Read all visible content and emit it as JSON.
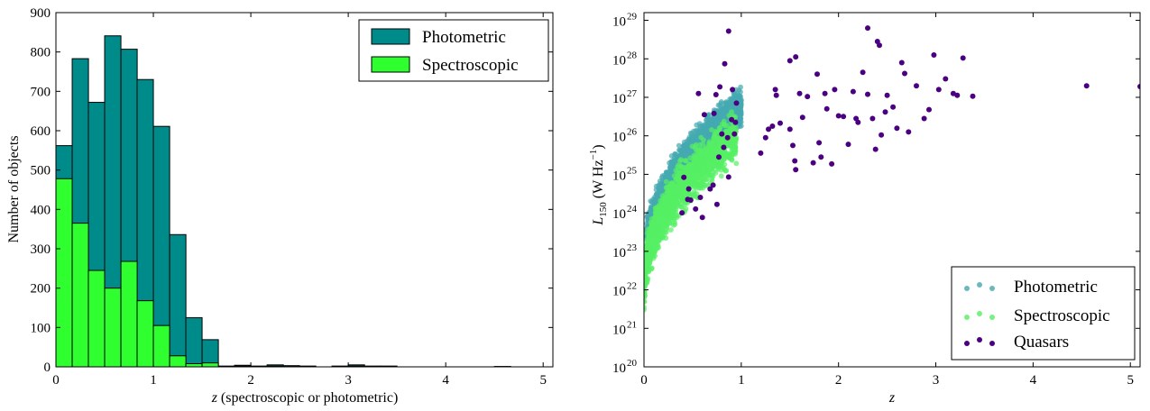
{
  "chart_data": [
    {
      "type": "bar",
      "stacked": false,
      "xlabel_italic": "z",
      "xlabel_rest": " (spectroscopic or photometric)",
      "ylabel": "Number of objects",
      "xlim": [
        0,
        5.1
      ],
      "ylim": [
        0,
        900
      ],
      "xticks": [
        "0",
        "1",
        "2",
        "3",
        "4",
        "5"
      ],
      "yticks": [
        "0",
        "100",
        "200",
        "300",
        "400",
        "500",
        "600",
        "700",
        "800",
        "900"
      ],
      "legend_position": "top-right",
      "grid": false,
      "bin_width": 0.167,
      "bin_starts": [
        0,
        0.167,
        0.333,
        0.5,
        0.667,
        0.833,
        1.0,
        1.167,
        1.333,
        1.5,
        1.667,
        1.833,
        2.0,
        2.167,
        2.333,
        2.5,
        2.667,
        2.833,
        3.0,
        3.167,
        3.333,
        3.5,
        3.667,
        3.833,
        4.0,
        4.167,
        4.333,
        4.5
      ],
      "series": [
        {
          "name": "Photometric",
          "color": "#008b8b",
          "values": [
            562,
            783,
            672,
            841,
            807,
            730,
            611,
            336,
            125,
            69,
            2,
            4,
            2,
            5,
            3,
            2,
            0,
            2,
            5,
            2,
            2,
            0,
            0,
            0,
            0,
            0,
            0,
            1
          ]
        },
        {
          "name": "Spectroscopic",
          "color": "#2fff2f",
          "values": [
            478,
            365,
            245,
            200,
            268,
            168,
            105,
            28,
            8,
            10,
            0,
            2,
            0,
            2,
            1,
            1,
            0,
            1,
            2,
            1,
            0,
            0,
            0,
            0,
            0,
            0,
            0,
            0
          ]
        }
      ]
    },
    {
      "type": "scatter",
      "xlabel": "z",
      "ylabel_main": "L",
      "ylabel_sub": "150",
      "ylabel_unit": " (W Hz",
      "ylabel_sup": "−1",
      "ylabel_close": ")",
      "xlim": [
        0,
        5.1
      ],
      "ylim_log10": [
        20,
        29.2
      ],
      "y_scale": "log",
      "xticks": [
        "0",
        "1",
        "2",
        "3",
        "4",
        "5"
      ],
      "ytick_base": "10",
      "ytick_exponents": [
        "20",
        "21",
        "22",
        "23",
        "24",
        "25",
        "26",
        "27",
        "28",
        "29"
      ],
      "legend_position": "bottom-right",
      "grid": false,
      "series": [
        {
          "name": "Photometric",
          "color": "#44aab0",
          "cloud": {
            "z_min": 0.02,
            "z_max": 1.0,
            "count": 2600
          }
        },
        {
          "name": "Spectroscopic",
          "color": "#55f064",
          "cloud": {
            "z_min": 0.0,
            "z_max": 0.95,
            "count": 1500
          }
        },
        {
          "name": "Quasars",
          "color": "#4b0082",
          "points": [
            [
              0.87,
              28.72
            ],
            [
              0.83,
              27.87
            ],
            [
              0.74,
              27.07
            ],
            [
              0.78,
              27.27
            ],
            [
              0.56,
              27.1
            ],
            [
              0.91,
              27.2
            ],
            [
              0.95,
              26.85
            ],
            [
              0.72,
              26.58
            ],
            [
              0.9,
              26.42
            ],
            [
              0.94,
              26.35
            ],
            [
              0.86,
              25.95
            ],
            [
              0.82,
              25.7
            ],
            [
              0.8,
              26.05
            ],
            [
              0.77,
              25.45
            ],
            [
              0.41,
              24.92
            ],
            [
              0.46,
              24.62
            ],
            [
              0.45,
              24.35
            ],
            [
              0.58,
              24.4
            ],
            [
              0.48,
              24.33
            ],
            [
              0.87,
              24.93
            ],
            [
              0.71,
              24.72
            ],
            [
              0.75,
              24.22
            ],
            [
              0.68,
              24.62
            ],
            [
              0.6,
              23.88
            ],
            [
              0.53,
              24.1
            ],
            [
              0.39,
              24.0
            ],
            [
              0.62,
              26.55
            ],
            [
              0.93,
              26.05
            ],
            [
              1.2,
              25.55
            ],
            [
              1.25,
              25.95
            ],
            [
              1.28,
              26.17
            ],
            [
              1.32,
              26.25
            ],
            [
              1.36,
              27.05
            ],
            [
              1.35,
              27.2
            ],
            [
              1.4,
              26.33
            ],
            [
              1.5,
              26.17
            ],
            [
              1.53,
              25.75
            ],
            [
              1.55,
              25.35
            ],
            [
              1.56,
              25.12
            ],
            [
              1.5,
              27.95
            ],
            [
              1.56,
              28.05
            ],
            [
              1.6,
              27.1
            ],
            [
              1.63,
              26.48
            ],
            [
              1.68,
              27.02
            ],
            [
              1.74,
              25.3
            ],
            [
              1.78,
              27.6
            ],
            [
              1.8,
              25.82
            ],
            [
              1.82,
              25.45
            ],
            [
              1.86,
              27.1
            ],
            [
              1.88,
              26.7
            ],
            [
              1.93,
              25.27
            ],
            [
              1.96,
              27.2
            ],
            [
              2.0,
              26.52
            ],
            [
              2.05,
              26.5
            ],
            [
              2.1,
              25.78
            ],
            [
              2.15,
              27.15
            ],
            [
              2.18,
              26.45
            ],
            [
              2.2,
              26.35
            ],
            [
              2.25,
              27.65
            ],
            [
              2.3,
              27.08
            ],
            [
              2.3,
              28.8
            ],
            [
              2.35,
              26.45
            ],
            [
              2.38,
              25.65
            ],
            [
              2.4,
              28.45
            ],
            [
              2.42,
              28.35
            ],
            [
              2.44,
              26.02
            ],
            [
              2.48,
              26.62
            ],
            [
              2.5,
              27.05
            ],
            [
              2.56,
              26.75
            ],
            [
              2.6,
              26.2
            ],
            [
              2.65,
              27.9
            ],
            [
              2.68,
              27.62
            ],
            [
              2.72,
              26.1
            ],
            [
              2.8,
              27.3
            ],
            [
              2.88,
              26.45
            ],
            [
              2.93,
              26.68
            ],
            [
              2.98,
              28.1
            ],
            [
              3.03,
              27.2
            ],
            [
              3.1,
              27.48
            ],
            [
              3.18,
              27.1
            ],
            [
              3.22,
              27.05
            ],
            [
              3.28,
              28.02
            ],
            [
              3.38,
              27.03
            ],
            [
              4.55,
              27.3
            ],
            [
              5.1,
              27.28
            ]
          ]
        }
      ]
    }
  ]
}
